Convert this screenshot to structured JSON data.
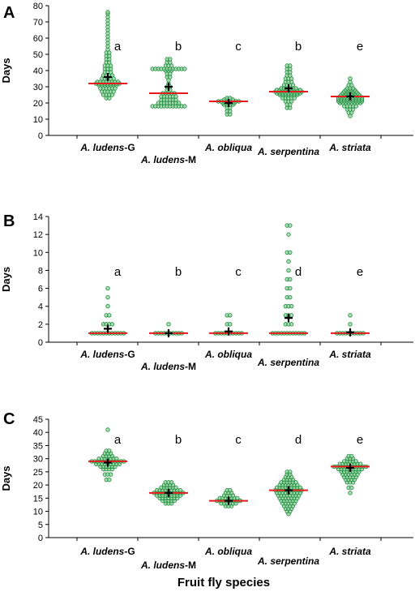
{
  "colors": {
    "point_fill": "#8fd19e",
    "point_stroke": "#1e8a3c",
    "median_line": "#e41a1c",
    "mean_marker": "#000000"
  },
  "xlabel": "Fruit fly species",
  "chart_data": [
    {
      "type": "scatter",
      "panel_label": "A",
      "ylabel": "Days",
      "ylim": [
        0,
        80
      ],
      "yticks": [
        0,
        10,
        20,
        30,
        40,
        50,
        60,
        70,
        80
      ],
      "categories": [
        "A. ludens-G",
        "A. ludens-M",
        "A. obliqua",
        "A. serpentina",
        "A. striata"
      ],
      "category_labels": [
        {
          "italic": "A. ludens",
          "suffix": "-G"
        },
        {
          "italic": "A. ludens",
          "suffix": "-M"
        },
        {
          "italic": "A. obliqua",
          "suffix": ""
        },
        {
          "italic": "A. serpentina",
          "suffix": ""
        },
        {
          "italic": "A. striata",
          "suffix": ""
        }
      ],
      "significance_letters": [
        "a",
        "b",
        "c",
        "b",
        "e"
      ],
      "medians": [
        32,
        26,
        21,
        27,
        24
      ],
      "means": [
        36,
        30,
        20,
        29,
        24
      ],
      "series": [
        {
          "values": [
            {
              "v": 23,
              "n": 2
            },
            {
              "v": 25,
              "n": 4
            },
            {
              "v": 27,
              "n": 5
            },
            {
              "v": 29,
              "n": 6
            },
            {
              "v": 31,
              "n": 7
            },
            {
              "v": 32,
              "n": 9
            },
            {
              "v": 33,
              "n": 8
            },
            {
              "v": 35,
              "n": 5
            },
            {
              "v": 37,
              "n": 4
            },
            {
              "v": 39,
              "n": 3
            },
            {
              "v": 41,
              "n": 3
            },
            {
              "v": 43,
              "n": 3
            },
            {
              "v": 45,
              "n": 2
            },
            {
              "v": 47,
              "n": 2
            },
            {
              "v": 49,
              "n": 2
            },
            {
              "v": 51,
              "n": 2
            },
            {
              "v": 53,
              "n": 1
            },
            {
              "v": 55,
              "n": 1
            },
            {
              "v": 57,
              "n": 1
            },
            {
              "v": 59,
              "n": 1
            },
            {
              "v": 61,
              "n": 1
            },
            {
              "v": 63,
              "n": 1
            },
            {
              "v": 65,
              "n": 1
            },
            {
              "v": 67,
              "n": 1
            },
            {
              "v": 69,
              "n": 1
            },
            {
              "v": 71,
              "n": 1
            },
            {
              "v": 73,
              "n": 1
            },
            {
              "v": 75,
              "n": 1
            },
            {
              "v": 76,
              "n": 1
            }
          ]
        },
        {
          "values": [
            {
              "v": 18,
              "n": 12
            },
            {
              "v": 20,
              "n": 8
            },
            {
              "v": 22,
              "n": 6
            },
            {
              "v": 24,
              "n": 6
            },
            {
              "v": 26,
              "n": 5
            },
            {
              "v": 28,
              "n": 2
            },
            {
              "v": 30,
              "n": 2
            },
            {
              "v": 32,
              "n": 1
            },
            {
              "v": 34,
              "n": 1
            },
            {
              "v": 36,
              "n": 2
            },
            {
              "v": 38,
              "n": 2
            },
            {
              "v": 40,
              "n": 3
            },
            {
              "v": 41,
              "n": 12
            },
            {
              "v": 43,
              "n": 3
            },
            {
              "v": 45,
              "n": 2
            },
            {
              "v": 47,
              "n": 2
            }
          ]
        },
        {
          "values": [
            {
              "v": 13,
              "n": 2
            },
            {
              "v": 15,
              "n": 2
            },
            {
              "v": 17,
              "n": 2
            },
            {
              "v": 19,
              "n": 4
            },
            {
              "v": 20,
              "n": 5
            },
            {
              "v": 21,
              "n": 8
            },
            {
              "v": 22,
              "n": 4
            },
            {
              "v": 23,
              "n": 2
            }
          ]
        },
        {
          "values": [
            {
              "v": 17,
              "n": 2
            },
            {
              "v": 19,
              "n": 2
            },
            {
              "v": 21,
              "n": 3
            },
            {
              "v": 23,
              "n": 5
            },
            {
              "v": 25,
              "n": 7
            },
            {
              "v": 26,
              "n": 9
            },
            {
              "v": 27,
              "n": 10
            },
            {
              "v": 28,
              "n": 9
            },
            {
              "v": 29,
              "n": 6
            },
            {
              "v": 31,
              "n": 4
            },
            {
              "v": 33,
              "n": 3
            },
            {
              "v": 35,
              "n": 3
            },
            {
              "v": 37,
              "n": 2
            },
            {
              "v": 39,
              "n": 2
            },
            {
              "v": 41,
              "n": 2
            },
            {
              "v": 43,
              "n": 2
            }
          ]
        },
        {
          "values": [
            {
              "v": 12,
              "n": 1
            },
            {
              "v": 14,
              "n": 2
            },
            {
              "v": 16,
              "n": 3
            },
            {
              "v": 18,
              "n": 5
            },
            {
              "v": 20,
              "n": 8
            },
            {
              "v": 21,
              "n": 9
            },
            {
              "v": 22,
              "n": 9
            },
            {
              "v": 23,
              "n": 9
            },
            {
              "v": 24,
              "n": 8
            },
            {
              "v": 25,
              "n": 7
            },
            {
              "v": 26,
              "n": 6
            },
            {
              "v": 27,
              "n": 5
            },
            {
              "v": 28,
              "n": 4
            },
            {
              "v": 29,
              "n": 3
            },
            {
              "v": 31,
              "n": 2
            },
            {
              "v": 33,
              "n": 1
            },
            {
              "v": 35,
              "n": 1
            }
          ]
        }
      ]
    },
    {
      "type": "scatter",
      "panel_label": "B",
      "ylabel": "Days",
      "ylim": [
        0,
        14
      ],
      "yticks": [
        0,
        2,
        4,
        6,
        8,
        10,
        12,
        14
      ],
      "categories": [
        "A. ludens-G",
        "A. ludens-M",
        "A. obliqua",
        "A. serpentina",
        "A. striata"
      ],
      "category_labels": [
        {
          "italic": "A. ludens",
          "suffix": "-G"
        },
        {
          "italic": "A. ludens",
          "suffix": "-M"
        },
        {
          "italic": "A. obliqua",
          "suffix": ""
        },
        {
          "italic": "A. serpentina",
          "suffix": ""
        },
        {
          "italic": "A. striata",
          "suffix": ""
        }
      ],
      "significance_letters": [
        "a",
        "b",
        "c",
        "d",
        "e"
      ],
      "medians": [
        1,
        1,
        1,
        1,
        1
      ],
      "means": [
        1.5,
        1.0,
        1.2,
        2.7,
        1.1
      ],
      "series": [
        {
          "values": [
            {
              "v": 1,
              "n": 12
            },
            {
              "v": 2,
              "n": 4
            },
            {
              "v": 3,
              "n": 2
            },
            {
              "v": 4,
              "n": 1
            },
            {
              "v": 5,
              "n": 1
            },
            {
              "v": 6,
              "n": 1
            }
          ]
        },
        {
          "values": [
            {
              "v": 1,
              "n": 10
            },
            {
              "v": 2,
              "n": 1
            }
          ]
        },
        {
          "values": [
            {
              "v": 1,
              "n": 10
            },
            {
              "v": 2,
              "n": 2
            },
            {
              "v": 3,
              "n": 2
            }
          ]
        },
        {
          "values": [
            {
              "v": 1,
              "n": 12
            },
            {
              "v": 2,
              "n": 3
            },
            {
              "v": 3,
              "n": 3
            },
            {
              "v": 4,
              "n": 3
            },
            {
              "v": 5,
              "n": 2
            },
            {
              "v": 6,
              "n": 2
            },
            {
              "v": 7,
              "n": 2
            },
            {
              "v": 8,
              "n": 1
            },
            {
              "v": 9,
              "n": 1
            },
            {
              "v": 10,
              "n": 2
            },
            {
              "v": 12,
              "n": 1
            },
            {
              "v": 13,
              "n": 2
            }
          ]
        },
        {
          "values": [
            {
              "v": 1,
              "n": 10
            },
            {
              "v": 2,
              "n": 1
            },
            {
              "v": 3,
              "n": 1
            }
          ]
        }
      ]
    },
    {
      "type": "scatter",
      "panel_label": "C",
      "ylabel": "Days",
      "ylim": [
        0,
        45
      ],
      "yticks": [
        0,
        5,
        10,
        15,
        20,
        25,
        30,
        35,
        40,
        45
      ],
      "categories": [
        "A. ludens-G",
        "A. ludens-M",
        "A. obliqua",
        "A. serpentina",
        "A. striata"
      ],
      "category_labels": [
        {
          "italic": "A. ludens",
          "suffix": "-G"
        },
        {
          "italic": "A. ludens",
          "suffix": "-M"
        },
        {
          "italic": "A. obliqua",
          "suffix": ""
        },
        {
          "italic": "A. serpentina",
          "suffix": ""
        },
        {
          "italic": "A. striata",
          "suffix": ""
        }
      ],
      "significance_letters": [
        "a",
        "b",
        "c",
        "d",
        "e"
      ],
      "medians": [
        29,
        17,
        14,
        18,
        27
      ],
      "means": [
        28.5,
        17,
        14,
        18,
        26.5
      ],
      "series": [
        {
          "values": [
            {
              "v": 22,
              "n": 2
            },
            {
              "v": 24,
              "n": 3
            },
            {
              "v": 26,
              "n": 4
            },
            {
              "v": 27,
              "n": 6
            },
            {
              "v": 28,
              "n": 9
            },
            {
              "v": 29,
              "n": 12
            },
            {
              "v": 30,
              "n": 7
            },
            {
              "v": 31,
              "n": 4
            },
            {
              "v": 32,
              "n": 3
            },
            {
              "v": 33,
              "n": 2
            },
            {
              "v": 41,
              "n": 1
            }
          ]
        },
        {
          "values": [
            {
              "v": 13,
              "n": 3
            },
            {
              "v": 14,
              "n": 5
            },
            {
              "v": 15,
              "n": 7
            },
            {
              "v": 16,
              "n": 9
            },
            {
              "v": 17,
              "n": 11
            },
            {
              "v": 18,
              "n": 9
            },
            {
              "v": 19,
              "n": 6
            },
            {
              "v": 20,
              "n": 4
            },
            {
              "v": 21,
              "n": 3
            }
          ]
        },
        {
          "values": [
            {
              "v": 12,
              "n": 3
            },
            {
              "v": 13,
              "n": 6
            },
            {
              "v": 14,
              "n": 9
            },
            {
              "v": 15,
              "n": 7
            },
            {
              "v": 16,
              "n": 4
            },
            {
              "v": 17,
              "n": 3
            },
            {
              "v": 18,
              "n": 2
            }
          ]
        },
        {
          "values": [
            {
              "v": 9,
              "n": 1
            },
            {
              "v": 10,
              "n": 2
            },
            {
              "v": 11,
              "n": 3
            },
            {
              "v": 12,
              "n": 4
            },
            {
              "v": 13,
              "n": 5
            },
            {
              "v": 14,
              "n": 6
            },
            {
              "v": 15,
              "n": 7
            },
            {
              "v": 16,
              "n": 8
            },
            {
              "v": 17,
              "n": 9
            },
            {
              "v": 18,
              "n": 10
            },
            {
              "v": 19,
              "n": 9
            },
            {
              "v": 20,
              "n": 7
            },
            {
              "v": 21,
              "n": 6
            },
            {
              "v": 22,
              "n": 4
            },
            {
              "v": 23,
              "n": 3
            },
            {
              "v": 24,
              "n": 2
            },
            {
              "v": 25,
              "n": 2
            }
          ]
        },
        {
          "values": [
            {
              "v": 17,
              "n": 1
            },
            {
              "v": 19,
              "n": 2
            },
            {
              "v": 21,
              "n": 3
            },
            {
              "v": 22,
              "n": 4
            },
            {
              "v": 23,
              "n": 5
            },
            {
              "v": 24,
              "n": 6
            },
            {
              "v": 25,
              "n": 7
            },
            {
              "v": 26,
              "n": 9
            },
            {
              "v": 27,
              "n": 12
            },
            {
              "v": 28,
              "n": 8
            },
            {
              "v": 29,
              "n": 5
            },
            {
              "v": 30,
              "n": 3
            },
            {
              "v": 31,
              "n": 2
            }
          ]
        }
      ]
    }
  ]
}
